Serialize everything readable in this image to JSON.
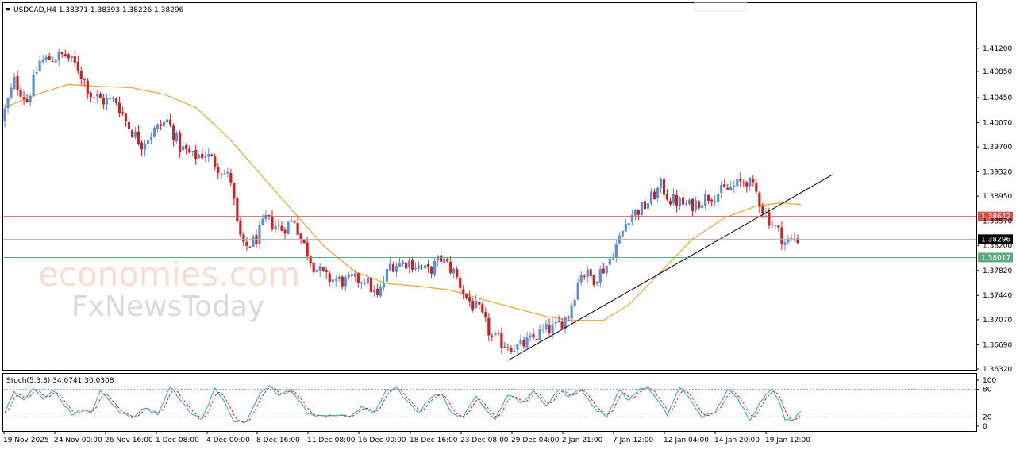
{
  "header": {
    "symbol_info": "USDCAD,H4  1.38371 1.38393 1.38226 1.38296",
    "stoch_info": "Stoch(5,3,3) 34.0741 30.0308"
  },
  "watermark": {
    "line1": "economies.com",
    "line2": "FxNewsToday"
  },
  "colors": {
    "bull": "#5b8fd6",
    "bear": "#d11f1f",
    "ma": "#f0a030",
    "trendline": "#000000",
    "resistance": "#d94c4c",
    "support": "#5cad7a",
    "current": "#b0b0b0",
    "stoch_main": "#2aa5b8",
    "stoch_signal": "#d11f1f"
  },
  "chart_data": [
    {
      "type": "candlestick",
      "symbol": "USDCAD",
      "timeframe": "H4",
      "ylim": [
        1.3632,
        1.415
      ],
      "y_ticks": [
        "1.41200",
        "1.40850",
        "1.40450",
        "1.40070",
        "1.39700",
        "1.39320",
        "1.38950",
        "1.38570",
        "1.38200",
        "1.37820",
        "1.37440",
        "1.37070",
        "1.36690",
        "1.36320"
      ],
      "x_ticks": [
        "19 Nov 2025",
        "24 Nov 00:00",
        "26 Nov 16:00",
        "1 Dec 08:00",
        "4 Dec 00:00",
        "8 Dec 16:00",
        "11 Dec 08:00",
        "16 Dec 00:00",
        "18 Dec 16:00",
        "23 Dec 08:00",
        "29 Dec 04:00",
        "2 Jan 21:00",
        "7 Jan 12:00",
        "12 Jan 04:00",
        "14 Jan 20:00",
        "19 Jan 12:00"
      ],
      "anchors": [
        [
          0,
          1.401
        ],
        [
          4,
          1.407
        ],
        [
          8,
          1.404
        ],
        [
          12,
          1.41
        ],
        [
          16,
          1.4105
        ],
        [
          20,
          1.411
        ],
        [
          24,
          1.409
        ],
        [
          28,
          1.405
        ],
        [
          32,
          1.404
        ],
        [
          36,
          1.404
        ],
        [
          40,
          1.4
        ],
        [
          44,
          1.3975
        ],
        [
          48,
          1.3995
        ],
        [
          52,
          1.401
        ],
        [
          56,
          1.397
        ],
        [
          60,
          1.3955
        ],
        [
          64,
          1.396
        ],
        [
          68,
          1.394
        ],
        [
          72,
          1.392
        ],
        [
          74,
          1.385
        ],
        [
          76,
          1.3815
        ],
        [
          80,
          1.383
        ],
        [
          83,
          1.386
        ],
        [
          88,
          1.3845
        ],
        [
          92,
          1.386
        ],
        [
          94,
          1.383
        ],
        [
          98,
          1.379
        ],
        [
          102,
          1.377
        ],
        [
          108,
          1.3765
        ],
        [
          114,
          1.377
        ],
        [
          118,
          1.374
        ],
        [
          122,
          1.379
        ],
        [
          128,
          1.3795
        ],
        [
          134,
          1.378
        ],
        [
          138,
          1.38
        ],
        [
          142,
          1.378
        ],
        [
          146,
          1.374
        ],
        [
          150,
          1.372
        ],
        [
          154,
          1.368
        ],
        [
          158,
          1.367
        ],
        [
          162,
          1.3665
        ],
        [
          166,
          1.3675
        ],
        [
          170,
          1.369
        ],
        [
          174,
          1.3695
        ],
        [
          178,
          1.3715
        ],
        [
          182,
          1.378
        ],
        [
          186,
          1.377
        ],
        [
          190,
          1.379
        ],
        [
          194,
          1.383
        ],
        [
          197,
          1.3865
        ],
        [
          202,
          1.388
        ],
        [
          207,
          1.391
        ],
        [
          210,
          1.389
        ],
        [
          216,
          1.388
        ],
        [
          222,
          1.3895
        ],
        [
          228,
          1.3905
        ],
        [
          234,
          1.392
        ],
        [
          237,
          1.39
        ],
        [
          239,
          1.3875
        ],
        [
          241,
          1.386
        ],
        [
          244,
          1.384
        ],
        [
          246,
          1.3825
        ],
        [
          249,
          1.383
        ]
      ],
      "candle_count": 250,
      "moving_average": [
        [
          0,
          1.403
        ],
        [
          10,
          1.405
        ],
        [
          20,
          1.4065
        ],
        [
          30,
          1.4062
        ],
        [
          40,
          1.406
        ],
        [
          50,
          1.405
        ],
        [
          60,
          1.403
        ],
        [
          70,
          1.3985
        ],
        [
          80,
          1.393
        ],
        [
          90,
          1.3875
        ],
        [
          100,
          1.382
        ],
        [
          110,
          1.378
        ],
        [
          120,
          1.3762
        ],
        [
          130,
          1.3758
        ],
        [
          140,
          1.3752
        ],
        [
          150,
          1.3738
        ],
        [
          160,
          1.3725
        ],
        [
          170,
          1.3712
        ],
        [
          178,
          1.3706
        ],
        [
          188,
          1.3706
        ],
        [
          196,
          1.373
        ],
        [
          206,
          1.378
        ],
        [
          216,
          1.383
        ],
        [
          226,
          1.3862
        ],
        [
          236,
          1.388
        ],
        [
          244,
          1.3885
        ],
        [
          250,
          1.3882
        ]
      ],
      "trendline": [
        [
          158,
          1.3645
        ],
        [
          260,
          1.3928
        ]
      ],
      "horizontal_levels": [
        {
          "value": 1.38642,
          "label": "1.38642",
          "role": "resistance"
        },
        {
          "value": 1.38296,
          "label": "1.38296",
          "role": "current"
        },
        {
          "value": 1.38017,
          "label": "1.38017",
          "role": "support"
        }
      ]
    },
    {
      "type": "line",
      "indicator": "Stochastic",
      "params": [
        5,
        3,
        3
      ],
      "main": 34.0741,
      "signal": 30.0308,
      "ylim": [
        0,
        100
      ],
      "y_ticks": [
        "100",
        "80",
        "20",
        "0"
      ],
      "levels": [
        80,
        20
      ],
      "series_anchors": [
        [
          0,
          30
        ],
        [
          3,
          75
        ],
        [
          6,
          55
        ],
        [
          9,
          82
        ],
        [
          12,
          60
        ],
        [
          15,
          78
        ],
        [
          18,
          55
        ],
        [
          21,
          25
        ],
        [
          24,
          35
        ],
        [
          27,
          28
        ],
        [
          30,
          75
        ],
        [
          33,
          55
        ],
        [
          36,
          30
        ],
        [
          40,
          20
        ],
        [
          44,
          40
        ],
        [
          48,
          25
        ],
        [
          52,
          88
        ],
        [
          55,
          60
        ],
        [
          58,
          30
        ],
        [
          62,
          15
        ],
        [
          66,
          82
        ],
        [
          69,
          55
        ],
        [
          72,
          10
        ],
        [
          76,
          8
        ],
        [
          80,
          70
        ],
        [
          83,
          88
        ],
        [
          86,
          65
        ],
        [
          89,
          82
        ],
        [
          92,
          60
        ],
        [
          95,
          30
        ],
        [
          98,
          20
        ],
        [
          102,
          25
        ],
        [
          108,
          20
        ],
        [
          112,
          40
        ],
        [
          116,
          30
        ],
        [
          120,
          78
        ],
        [
          123,
          82
        ],
        [
          126,
          55
        ],
        [
          130,
          30
        ],
        [
          134,
          65
        ],
        [
          137,
          72
        ],
        [
          140,
          30
        ],
        [
          144,
          20
        ],
        [
          148,
          65
        ],
        [
          151,
          40
        ],
        [
          154,
          15
        ],
        [
          158,
          70
        ],
        [
          162,
          50
        ],
        [
          166,
          75
        ],
        [
          170,
          45
        ],
        [
          174,
          80
        ],
        [
          177,
          65
        ],
        [
          181,
          82
        ],
        [
          185,
          40
        ],
        [
          189,
          20
        ],
        [
          193,
          80
        ],
        [
          196,
          55
        ],
        [
          199,
          80
        ],
        [
          202,
          85
        ],
        [
          205,
          55
        ],
        [
          208,
          25
        ],
        [
          212,
          85
        ],
        [
          215,
          60
        ],
        [
          219,
          20
        ],
        [
          223,
          30
        ],
        [
          227,
          80
        ],
        [
          230,
          60
        ],
        [
          234,
          15
        ],
        [
          238,
          60
        ],
        [
          241,
          85
        ],
        [
          243,
          55
        ],
        [
          245,
          15
        ],
        [
          247,
          10
        ],
        [
          249,
          25
        ],
        [
          250,
          34
        ]
      ]
    }
  ]
}
